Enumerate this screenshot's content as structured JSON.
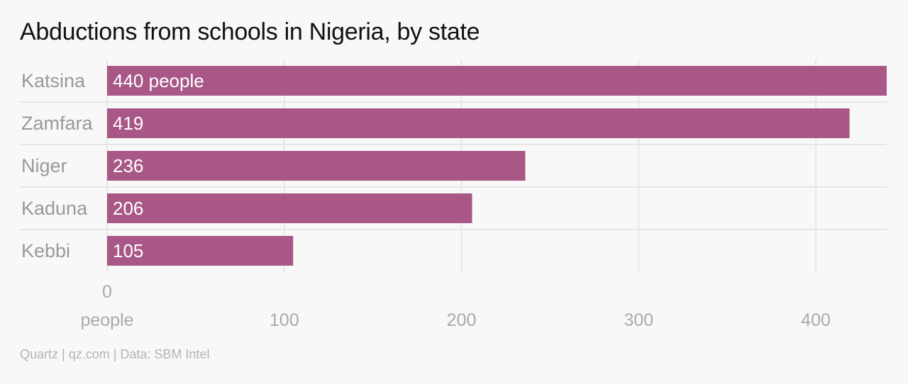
{
  "title": "Abductions from schools in Nigeria, by state",
  "source": "Quartz | qz.com | Data: SBM Intel",
  "colors": {
    "bar": "#a85787",
    "grid": "#e6e6e6",
    "background": "#f8f8f8"
  },
  "chart_data": {
    "type": "bar",
    "orientation": "horizontal",
    "categories": [
      "Katsina",
      "Zamfara",
      "Niger",
      "Kaduna",
      "Kebbi"
    ],
    "values": [
      440,
      419,
      236,
      206,
      105
    ],
    "data_labels": [
      "440 people",
      "419",
      "236",
      "206",
      "105"
    ],
    "x_ticks": [
      0,
      100,
      200,
      300,
      400
    ],
    "x_tick_labels": [
      "0",
      "100",
      "200",
      "300",
      "400"
    ],
    "x_unit_label": "people",
    "xlim": [
      0,
      440
    ],
    "grid": true
  }
}
